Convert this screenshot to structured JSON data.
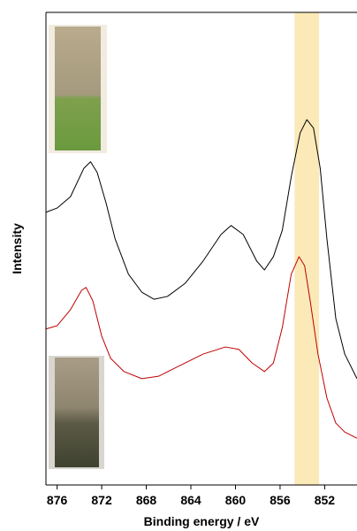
{
  "chart_data": {
    "type": "line",
    "xlabel": "Binding energy / eV",
    "ylabel": "Intensity",
    "xlim": [
      877,
      849.1
    ],
    "ylim": [
      0,
      100
    ],
    "xticks": [
      876,
      872,
      868,
      864,
      860,
      856,
      852
    ],
    "highlight_band": {
      "range": [
        854.7,
        852.5
      ],
      "color": "#fbe9b7"
    },
    "series": [
      {
        "color": "#000000",
        "x": [
          877.0,
          876.0,
          874.8,
          873.6,
          873.0,
          872.4,
          871.6,
          870.8,
          869.6,
          868.4,
          867.3,
          866.1,
          864.5,
          862.9,
          861.3,
          860.4,
          859.3,
          858.1,
          857.4,
          856.6,
          855.8,
          855.0,
          854.2,
          853.6,
          853.0,
          852.4,
          851.8,
          851.0,
          850.2,
          849.1
        ],
        "values": [
          57.7,
          58.6,
          61.0,
          67.0,
          68.4,
          66.1,
          59.6,
          52.1,
          44.6,
          40.8,
          39.3,
          39.9,
          42.7,
          47.4,
          53.0,
          54.9,
          53.0,
          47.4,
          45.5,
          48.3,
          53.9,
          65.2,
          74.5,
          77.3,
          75.5,
          67.0,
          52.1,
          35.2,
          27.7,
          22.5
        ]
      },
      {
        "color": "#c00000",
        "x": [
          877.0,
          876.0,
          874.8,
          873.8,
          873.4,
          872.8,
          872.0,
          871.2,
          870.0,
          868.4,
          866.9,
          865.3,
          862.9,
          860.9,
          859.7,
          858.5,
          857.4,
          856.6,
          855.8,
          855.0,
          854.3,
          853.8,
          853.3,
          852.6,
          851.8,
          851.0,
          850.2,
          849.1
        ],
        "values": [
          33.0,
          33.7,
          37.1,
          41.2,
          41.8,
          39.0,
          31.5,
          26.8,
          24.0,
          22.5,
          23.0,
          24.9,
          27.7,
          29.2,
          28.7,
          25.8,
          24.0,
          25.8,
          33.3,
          44.6,
          48.3,
          46.4,
          39.0,
          27.7,
          18.4,
          13.1,
          11.2,
          9.9
        ]
      }
    ]
  }
}
